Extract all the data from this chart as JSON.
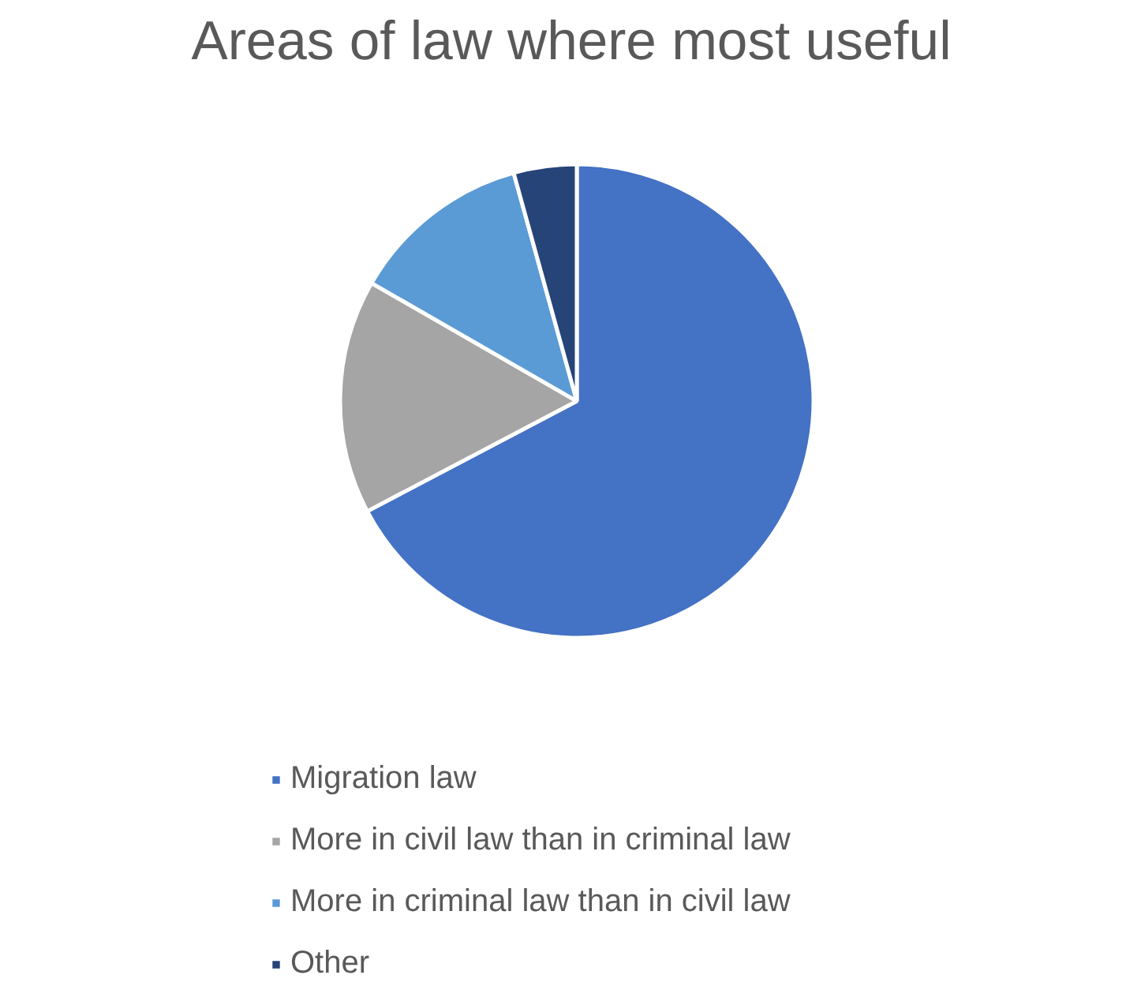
{
  "chart_data": {
    "type": "pie",
    "title": "Areas of law where most useful",
    "categories": [
      "Migration law",
      "More in civil law than in criminal law",
      "More in criminal law than in civil law",
      "Other"
    ],
    "values": [
      67.3,
      16,
      12.4,
      4.3
    ],
    "colors": [
      "#4472c4",
      "#a5a5a5",
      "#5b9bd5",
      "#264478"
    ],
    "legend": "bottom"
  }
}
